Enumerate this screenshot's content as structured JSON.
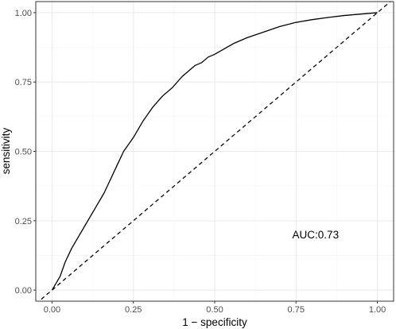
{
  "chart_data": {
    "type": "line",
    "title": "",
    "xlabel": "1 − specificity",
    "ylabel": "sensitivity",
    "xlim": [
      -0.05,
      1.05
    ],
    "ylim": [
      -0.04,
      1.04
    ],
    "x_ticks": [
      0,
      0.25,
      0.5,
      0.75,
      1
    ],
    "x_tick_labels": [
      "0.00",
      "0.25",
      "0.50",
      "0.75",
      "1.00"
    ],
    "y_ticks": [
      0,
      0.25,
      0.5,
      0.75,
      1
    ],
    "y_tick_labels": [
      "0.00",
      "0.25",
      "0.50",
      "0.75",
      "1.00"
    ],
    "grid": true,
    "series": [
      {
        "style": "solid",
        "color": "#000000",
        "x": [
          0.0,
          0.01,
          0.025,
          0.04,
          0.06,
          0.08,
          0.1,
          0.12,
          0.14,
          0.16,
          0.18,
          0.2,
          0.22,
          0.25,
          0.28,
          0.31,
          0.34,
          0.37,
          0.4,
          0.42,
          0.44,
          0.46,
          0.48,
          0.5,
          0.53,
          0.56,
          0.6,
          0.65,
          0.7,
          0.75,
          0.8,
          0.85,
          0.9,
          0.95,
          1.0
        ],
        "y": [
          0.0,
          0.02,
          0.05,
          0.1,
          0.15,
          0.19,
          0.23,
          0.27,
          0.31,
          0.35,
          0.4,
          0.45,
          0.5,
          0.55,
          0.61,
          0.66,
          0.7,
          0.73,
          0.77,
          0.79,
          0.81,
          0.82,
          0.84,
          0.85,
          0.87,
          0.89,
          0.91,
          0.93,
          0.95,
          0.965,
          0.975,
          0.983,
          0.99,
          0.995,
          1.0
        ]
      },
      {
        "style": "dashed",
        "color": "#000000",
        "x": [
          -0.05,
          1.05
        ],
        "y": [
          -0.05,
          1.05
        ]
      }
    ],
    "annotations": [
      {
        "text": "AUC:0.73",
        "x": 0.81,
        "y": 0.2
      }
    ]
  }
}
